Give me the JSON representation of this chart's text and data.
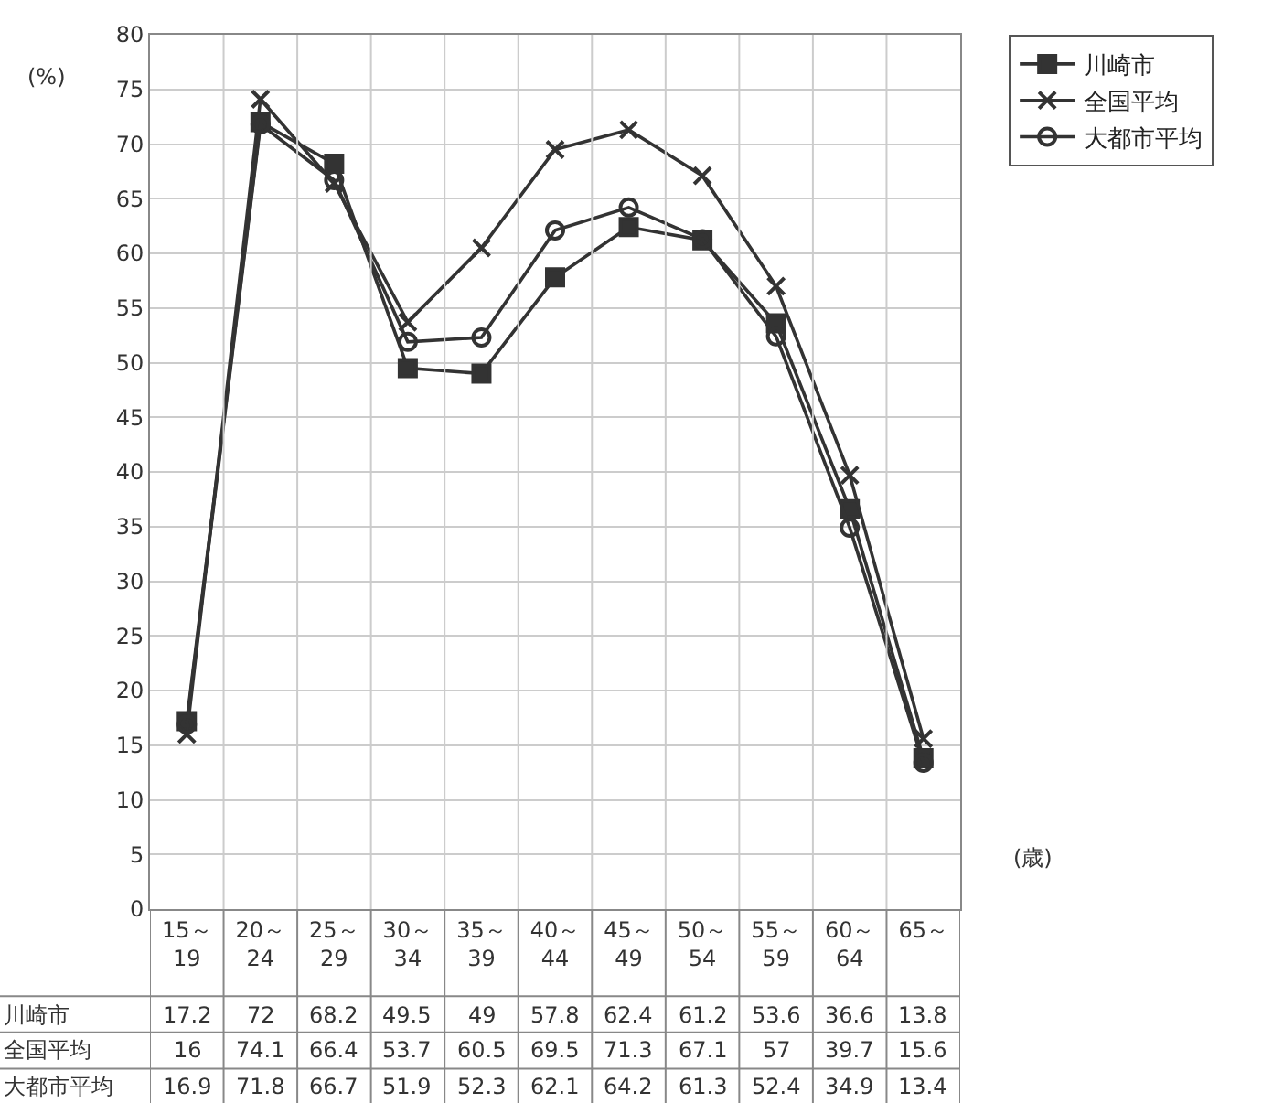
{
  "chart_data": {
    "type": "line",
    "ylabel": "(%)",
    "xlabel": "(歳)",
    "categories": [
      "15～\n19",
      "20～\n24",
      "25～\n29",
      "30～\n34",
      "35～\n39",
      "40～\n44",
      "45～\n49",
      "50～\n54",
      "55～\n59",
      "60～\n64",
      "65～"
    ],
    "series": [
      {
        "name": "川崎市",
        "color": "#333333",
        "marker": "square",
        "values": [
          17.2,
          72,
          68.2,
          49.5,
          49,
          57.8,
          62.4,
          61.2,
          53.6,
          36.6,
          13.8
        ]
      },
      {
        "name": "全国平均",
        "color": "#333333",
        "marker": "cross",
        "values": [
          16,
          74.1,
          66.4,
          53.7,
          60.5,
          69.5,
          71.3,
          67.1,
          57,
          39.7,
          15.6
        ]
      },
      {
        "name": "大都市平均",
        "color": "#333333",
        "marker": "circle",
        "values": [
          16.9,
          71.8,
          66.7,
          51.9,
          52.3,
          62.1,
          64.2,
          61.3,
          52.4,
          34.9,
          13.4
        ]
      }
    ],
    "ylim": [
      0,
      80
    ],
    "yticks": [
      0,
      5,
      10,
      15,
      20,
      25,
      30,
      35,
      40,
      45,
      50,
      55,
      60,
      65,
      70,
      75,
      80
    ],
    "grid": true,
    "legend": "top right",
    "data_labels": true
  }
}
